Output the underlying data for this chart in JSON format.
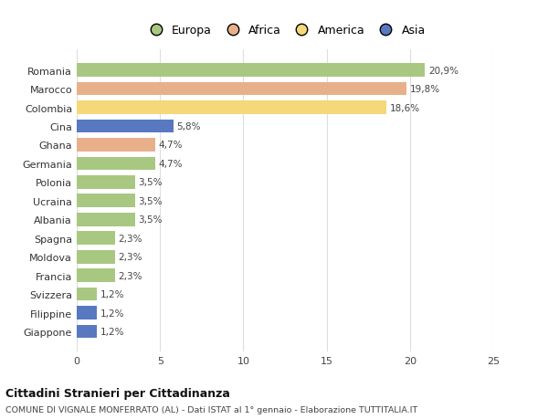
{
  "countries": [
    "Romania",
    "Marocco",
    "Colombia",
    "Cina",
    "Ghana",
    "Germania",
    "Polonia",
    "Ucraina",
    "Albania",
    "Spagna",
    "Moldova",
    "Francia",
    "Svizzera",
    "Filippine",
    "Giappone"
  ],
  "values": [
    20.9,
    19.8,
    18.6,
    5.8,
    4.7,
    4.7,
    3.5,
    3.5,
    3.5,
    2.3,
    2.3,
    2.3,
    1.2,
    1.2,
    1.2
  ],
  "labels": [
    "20,9%",
    "19,8%",
    "18,6%",
    "5,8%",
    "4,7%",
    "4,7%",
    "3,5%",
    "3,5%",
    "3,5%",
    "2,3%",
    "2,3%",
    "2,3%",
    "1,2%",
    "1,2%",
    "1,2%"
  ],
  "continents": [
    "Europa",
    "Africa",
    "America",
    "Asia",
    "Africa",
    "Europa",
    "Europa",
    "Europa",
    "Europa",
    "Europa",
    "Europa",
    "Europa",
    "Europa",
    "Asia",
    "Asia"
  ],
  "colors": {
    "Europa": "#a8c882",
    "Africa": "#e8b08a",
    "America": "#f5d878",
    "Asia": "#5878c0"
  },
  "legend_order": [
    "Europa",
    "Africa",
    "America",
    "Asia"
  ],
  "legend_colors": [
    "#a8c882",
    "#e8b08a",
    "#f5d878",
    "#5878c0"
  ],
  "xlim": [
    0,
    25
  ],
  "xticks": [
    0,
    5,
    10,
    15,
    20,
    25
  ],
  "title": "Cittadini Stranieri per Cittadinanza",
  "subtitle": "COMUNE DI VIGNALE MONFERRATO (AL) - Dati ISTAT al 1° gennaio - Elaborazione TUTTITALIA.IT",
  "bg_color": "#ffffff",
  "grid_color": "#dddddd"
}
